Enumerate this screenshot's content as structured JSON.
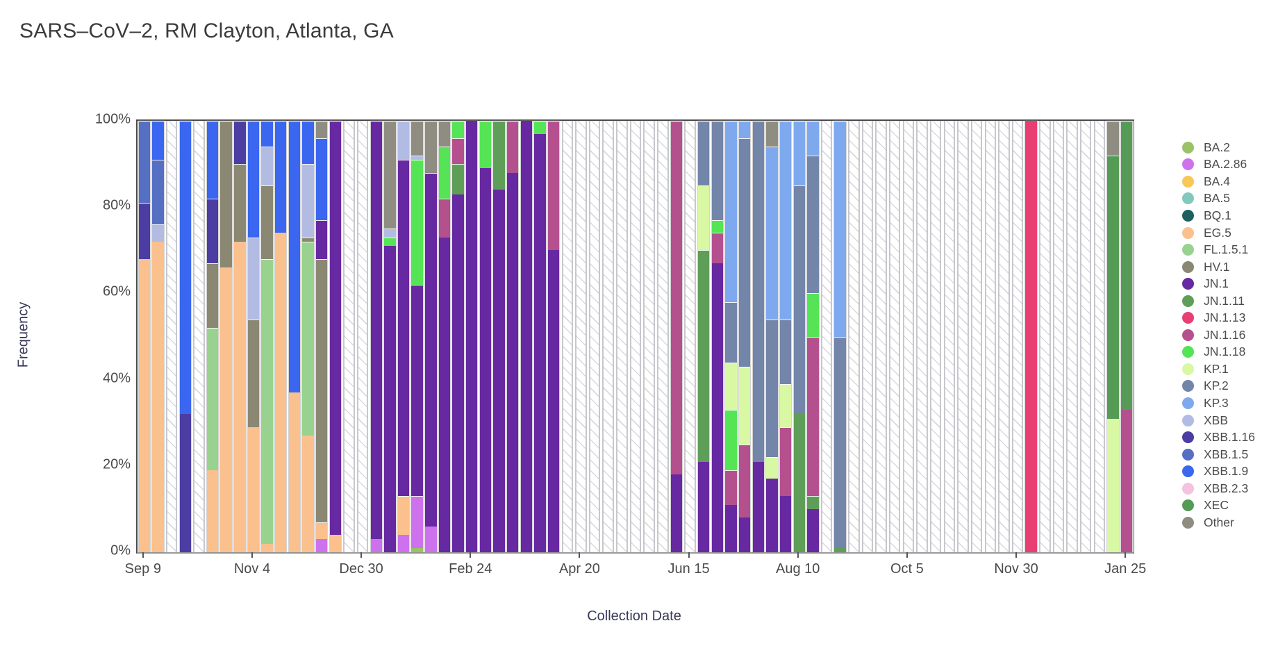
{
  "title": "SARS–CoV–2, RM Clayton, Atlanta, GA",
  "chart_data": {
    "type": "bar",
    "subtype": "stacked-percent-weekly",
    "title": "SARS–CoV–2, RM Clayton, Atlanta, GA",
    "xlabel": "Collection Date",
    "ylabel": "Frequency",
    "ylim": [
      0,
      100
    ],
    "grid": false,
    "legend_position": "right",
    "y_tick_labels": [
      "0%",
      "20%",
      "40%",
      "60%",
      "80%",
      "100%"
    ],
    "x_tick_indices": [
      0,
      8,
      16,
      24,
      32,
      40,
      48,
      56,
      64,
      72
    ],
    "x_tick_labels": [
      "Sep 9",
      "Nov 4",
      "Dec 30",
      "Feb 24",
      "Apr 20",
      "Jun 15",
      "Aug 10",
      "Oct 5",
      "Nov 30",
      "Jan 25"
    ],
    "no_data_style": "hatched",
    "variants": [
      {
        "name": "BA.2",
        "color": "#9ac266"
      },
      {
        "name": "BA.2.86",
        "color": "#cd72ec"
      },
      {
        "name": "BA.4",
        "color": "#f9c757"
      },
      {
        "name": "BA.5",
        "color": "#82c8bc"
      },
      {
        "name": "BQ.1",
        "color": "#1e6060"
      },
      {
        "name": "EG.5",
        "color": "#fac08e"
      },
      {
        "name": "FL.1.5.1",
        "color": "#98d28e"
      },
      {
        "name": "HV.1",
        "color": "#8a8773"
      },
      {
        "name": "JN.1",
        "color": "#6729a1"
      },
      {
        "name": "JN.1.11",
        "color": "#5f9e58"
      },
      {
        "name": "JN.1.13",
        "color": "#e83e74"
      },
      {
        "name": "JN.1.16",
        "color": "#b5508f"
      },
      {
        "name": "JN.1.18",
        "color": "#55e455"
      },
      {
        "name": "KP.1",
        "color": "#d8f8a3"
      },
      {
        "name": "KP.2",
        "color": "#7385a9"
      },
      {
        "name": "KP.3",
        "color": "#7fa9ef"
      },
      {
        "name": "XBB",
        "color": "#b2bbe2"
      },
      {
        "name": "XBB.1.16",
        "color": "#4b3da1"
      },
      {
        "name": "XBB.1.5",
        "color": "#5570c2"
      },
      {
        "name": "XBB.1.9",
        "color": "#3a66f0"
      },
      {
        "name": "XBB.2.3",
        "color": "#f4c3dd"
      },
      {
        "name": "XEC",
        "color": "#559b55"
      },
      {
        "name": "Other",
        "color": "#8f8d82"
      }
    ],
    "bars": [
      {
        "week": "Sep 9",
        "segments": [
          [
            "EG.5",
            68
          ],
          [
            "XBB.1.16",
            13
          ],
          [
            "XBB.1.5",
            19
          ]
        ]
      },
      {
        "week": "Sep 16",
        "segments": [
          [
            "EG.5",
            72
          ],
          [
            "XBB",
            4
          ],
          [
            "XBB.1.5",
            15
          ],
          [
            "XBB.1.9",
            9
          ]
        ]
      },
      {
        "week": "Sep 23",
        "segments": null
      },
      {
        "week": "Sep 30",
        "segments": [
          [
            "XBB.1.16",
            32
          ],
          [
            "XBB.1.9",
            68
          ]
        ]
      },
      {
        "week": "Oct 7",
        "segments": null
      },
      {
        "week": "Oct 14",
        "segments": [
          [
            "EG.5",
            19
          ],
          [
            "FL.1.5.1",
            33
          ],
          [
            "HV.1",
            15
          ],
          [
            "XBB.1.16",
            15
          ],
          [
            "XBB.1.9",
            18
          ]
        ]
      },
      {
        "week": "Oct 21",
        "segments": [
          [
            "EG.5",
            66
          ],
          [
            "HV.1",
            34
          ]
        ]
      },
      {
        "week": "Oct 28",
        "segments": [
          [
            "EG.5",
            72
          ],
          [
            "HV.1",
            18
          ],
          [
            "XBB.1.16",
            10
          ]
        ]
      },
      {
        "week": "Nov 4",
        "segments": [
          [
            "EG.5",
            29
          ],
          [
            "HV.1",
            25
          ],
          [
            "XBB",
            19
          ],
          [
            "XBB.1.9",
            27
          ]
        ]
      },
      {
        "week": "Nov 11",
        "segments": [
          [
            "EG.5",
            2
          ],
          [
            "FL.1.5.1",
            66
          ],
          [
            "HV.1",
            17
          ],
          [
            "XBB",
            9
          ],
          [
            "XBB.1.9",
            6
          ]
        ]
      },
      {
        "week": "Nov 18",
        "segments": [
          [
            "EG.5",
            74
          ],
          [
            "XBB.1.9",
            26
          ]
        ]
      },
      {
        "week": "Nov 25",
        "segments": [
          [
            "EG.5",
            37
          ],
          [
            "XBB.1.9",
            63
          ]
        ]
      },
      {
        "week": "Dec 2",
        "segments": [
          [
            "EG.5",
            27
          ],
          [
            "FL.1.5.1",
            45
          ],
          [
            "HV.1",
            1
          ],
          [
            "XBB",
            17
          ],
          [
            "XBB.1.9",
            10
          ]
        ]
      },
      {
        "week": "Dec 9",
        "segments": [
          [
            "BA.2.86",
            3
          ],
          [
            "EG.5",
            4
          ],
          [
            "HV.1",
            61
          ],
          [
            "JN.1",
            9
          ],
          [
            "XBB.1.9",
            19
          ],
          [
            "Other",
            4
          ]
        ]
      },
      {
        "week": "Dec 16",
        "segments": [
          [
            "EG.5",
            4
          ],
          [
            "JN.1",
            96
          ]
        ]
      },
      {
        "week": "Dec 23",
        "segments": null
      },
      {
        "week": "Dec 30",
        "segments": null
      },
      {
        "week": "Jan 6",
        "segments": [
          [
            "BA.2.86",
            3
          ],
          [
            "JN.1",
            97
          ]
        ]
      },
      {
        "week": "Jan 13",
        "segments": [
          [
            "JN.1",
            71
          ],
          [
            "JN.1.18",
            2
          ],
          [
            "XBB",
            2
          ],
          [
            "Other",
            25
          ]
        ]
      },
      {
        "week": "Jan 20",
        "segments": [
          [
            "BA.2.86",
            4
          ],
          [
            "EG.5",
            9
          ],
          [
            "JN.1",
            78
          ],
          [
            "XBB",
            9
          ]
        ]
      },
      {
        "week": "Jan 27",
        "segments": [
          [
            "BA.2",
            1
          ],
          [
            "BA.2.86",
            12
          ],
          [
            "JN.1",
            49
          ],
          [
            "JN.1.18",
            29
          ],
          [
            "XBB",
            1
          ],
          [
            "Other",
            8
          ]
        ]
      },
      {
        "week": "Feb 3",
        "segments": [
          [
            "BA.2.86",
            6
          ],
          [
            "JN.1",
            82
          ],
          [
            "Other",
            12
          ]
        ]
      },
      {
        "week": "Feb 10",
        "segments": [
          [
            "JN.1",
            73
          ],
          [
            "JN.1.16",
            9
          ],
          [
            "JN.1.18",
            12
          ],
          [
            "Other",
            6
          ]
        ]
      },
      {
        "week": "Feb 17",
        "segments": [
          [
            "JN.1",
            83
          ],
          [
            "JN.1.11",
            7
          ],
          [
            "JN.1.16",
            6
          ],
          [
            "JN.1.18",
            4
          ]
        ]
      },
      {
        "week": "Feb 24",
        "segments": [
          [
            "JN.1",
            100
          ]
        ]
      },
      {
        "week": "Mar 2",
        "segments": [
          [
            "JN.1",
            89
          ],
          [
            "JN.1.18",
            11
          ]
        ]
      },
      {
        "week": "Mar 9",
        "segments": [
          [
            "JN.1",
            84
          ],
          [
            "JN.1.11",
            16
          ]
        ]
      },
      {
        "week": "Mar 16",
        "segments": [
          [
            "JN.1",
            88
          ],
          [
            "JN.1.16",
            12
          ]
        ]
      },
      {
        "week": "Mar 23",
        "segments": [
          [
            "JN.1",
            100
          ]
        ]
      },
      {
        "week": "Mar 30",
        "segments": [
          [
            "JN.1",
            97
          ],
          [
            "JN.1.18",
            3
          ]
        ]
      },
      {
        "week": "Apr 6",
        "segments": [
          [
            "JN.1",
            70
          ],
          [
            "JN.1.16",
            30
          ]
        ]
      },
      {
        "week": "Apr 13",
        "segments": null
      },
      {
        "week": "Apr 20",
        "segments": null
      },
      {
        "week": "Apr 27",
        "segments": null
      },
      {
        "week": "May 4",
        "segments": null
      },
      {
        "week": "May 11",
        "segments": null
      },
      {
        "week": "May 18",
        "segments": null
      },
      {
        "week": "May 25",
        "segments": null
      },
      {
        "week": "Jun 1",
        "segments": null
      },
      {
        "week": "Jun 8",
        "segments": [
          [
            "JN.1",
            18
          ],
          [
            "JN.1.16",
            82
          ]
        ]
      },
      {
        "week": "Jun 15",
        "segments": null
      },
      {
        "week": "Jun 22",
        "segments": [
          [
            "JN.1",
            21
          ],
          [
            "JN.1.11",
            49
          ],
          [
            "KP.1",
            15
          ],
          [
            "KP.2",
            15
          ]
        ]
      },
      {
        "week": "Jun 29",
        "segments": [
          [
            "JN.1",
            67
          ],
          [
            "JN.1.16",
            7
          ],
          [
            "JN.1.18",
            3
          ],
          [
            "KP.2",
            23
          ]
        ]
      },
      {
        "week": "Jul 6",
        "segments": [
          [
            "JN.1",
            11
          ],
          [
            "JN.1.16",
            8
          ],
          [
            "JN.1.18",
            14
          ],
          [
            "KP.1",
            11
          ],
          [
            "KP.2",
            14
          ],
          [
            "KP.3",
            42
          ]
        ]
      },
      {
        "week": "Jul 13",
        "segments": [
          [
            "JN.1",
            8
          ],
          [
            "JN.1.16",
            17
          ],
          [
            "KP.1",
            18
          ],
          [
            "KP.2",
            53
          ],
          [
            "KP.3",
            4
          ]
        ]
      },
      {
        "week": "Jul 20",
        "segments": [
          [
            "JN.1",
            21
          ],
          [
            "KP.2",
            79
          ]
        ]
      },
      {
        "week": "Jul 27",
        "segments": [
          [
            "JN.1",
            17
          ],
          [
            "KP.1",
            5
          ],
          [
            "KP.2",
            32
          ],
          [
            "KP.3",
            40
          ],
          [
            "Other",
            6
          ]
        ]
      },
      {
        "week": "Aug 3",
        "segments": [
          [
            "JN.1",
            13
          ],
          [
            "JN.1.16",
            16
          ],
          [
            "KP.1",
            10
          ],
          [
            "KP.2",
            15
          ],
          [
            "KP.3",
            46
          ]
        ]
      },
      {
        "week": "Aug 10",
        "segments": [
          [
            "JN.1.11",
            32
          ],
          [
            "KP.2",
            53
          ],
          [
            "KP.3",
            15
          ]
        ]
      },
      {
        "week": "Aug 17",
        "segments": [
          [
            "JN.1",
            10
          ],
          [
            "JN.1.11",
            3
          ],
          [
            "JN.1.16",
            37
          ],
          [
            "JN.1.18",
            10
          ],
          [
            "KP.2",
            32
          ],
          [
            "KP.3",
            8
          ]
        ]
      },
      {
        "week": "Aug 24",
        "segments": null
      },
      {
        "week": "Aug 31",
        "segments": [
          [
            "JN.1.11",
            1
          ],
          [
            "KP.2",
            49
          ],
          [
            "KP.3",
            50
          ]
        ]
      },
      {
        "week": "Sep 7",
        "segments": null
      },
      {
        "week": "Sep 14",
        "segments": null
      },
      {
        "week": "Sep 21",
        "segments": null
      },
      {
        "week": "Sep 28",
        "segments": null
      },
      {
        "week": "Oct 5",
        "segments": null
      },
      {
        "week": "Oct 12",
        "segments": null
      },
      {
        "week": "Oct 19",
        "segments": null
      },
      {
        "week": "Oct 26",
        "segments": null
      },
      {
        "week": "Nov 2",
        "segments": null
      },
      {
        "week": "Nov 9",
        "segments": null
      },
      {
        "week": "Nov 16",
        "segments": null
      },
      {
        "week": "Nov 23",
        "segments": null
      },
      {
        "week": "Nov 30",
        "segments": null
      },
      {
        "week": "Dec 7",
        "segments": [
          [
            "JN.1.13",
            100
          ]
        ]
      },
      {
        "week": "Dec 14",
        "segments": null
      },
      {
        "week": "Dec 21",
        "segments": null
      },
      {
        "week": "Dec 28",
        "segments": null
      },
      {
        "week": "Jan 4",
        "segments": null
      },
      {
        "week": "Jan 11",
        "segments": null
      },
      {
        "week": "Jan 18",
        "segments": [
          [
            "KP.1",
            31
          ],
          [
            "XEC",
            61
          ],
          [
            "Other",
            8
          ]
        ]
      },
      {
        "week": "Jan 25",
        "segments": [
          [
            "JN.1.16",
            33
          ],
          [
            "XEC",
            67
          ]
        ]
      }
    ]
  }
}
